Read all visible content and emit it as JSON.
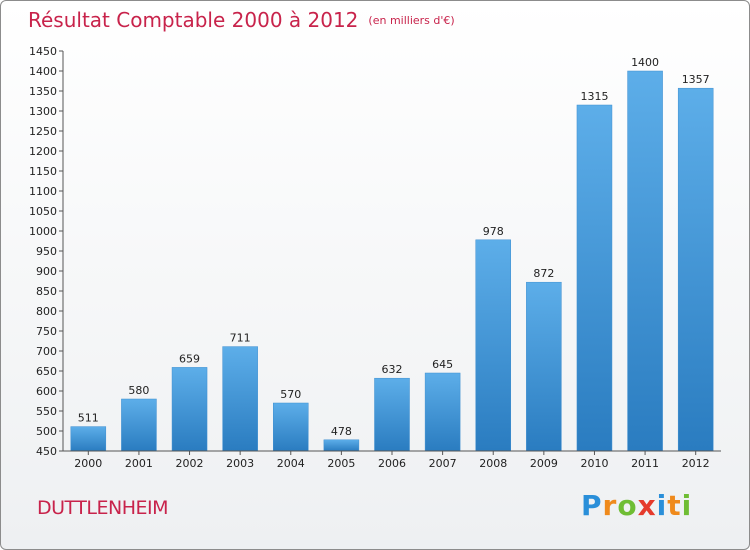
{
  "header": {
    "title": "Résultat Comptable 2000 à 2012",
    "unit": "(en milliers d'€)"
  },
  "footer": {
    "town": "DUTTLENHEIM",
    "logo_letters": [
      "P",
      "r",
      "o",
      "x",
      "i",
      "t",
      "i"
    ]
  },
  "colors": {
    "bar_light": "#5daee9",
    "bar_dark": "#2a7cc0",
    "title": "#c8234b"
  },
  "chart_data": {
    "type": "bar",
    "title": "Résultat Comptable 2000 à 2012",
    "xlabel": "",
    "ylabel": "",
    "categories": [
      "2000",
      "2001",
      "2002",
      "2003",
      "2004",
      "2005",
      "2006",
      "2007",
      "2008",
      "2009",
      "2010",
      "2011",
      "2012"
    ],
    "values": [
      511,
      580,
      659,
      711,
      570,
      478,
      632,
      645,
      978,
      872,
      1315,
      1400,
      1357
    ],
    "ylim": [
      450,
      1450
    ],
    "ytick_step": 50,
    "grid": false
  }
}
